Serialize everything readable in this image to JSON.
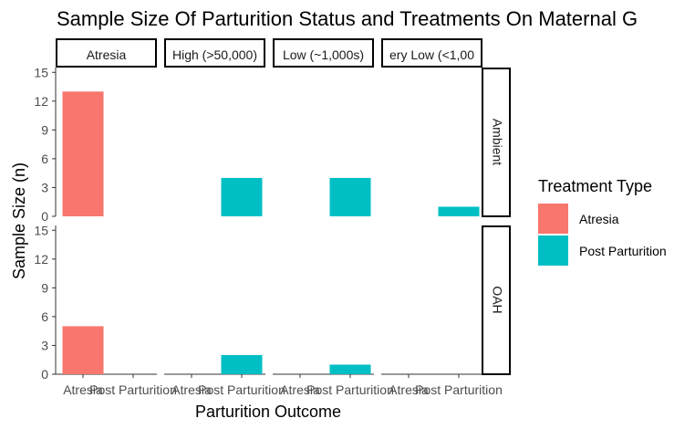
{
  "chart_data": {
    "type": "bar",
    "title": "Sample Size Of Parturition Status and Treatments On Maternal G",
    "xlabel": "Parturition Outcome",
    "ylabel": "Sample Size (n)",
    "ylim": [
      0,
      15.5
    ],
    "yticks": [
      0,
      3,
      6,
      9,
      12,
      15
    ],
    "categories": [
      "Atresia",
      "Post Parturition"
    ],
    "facet_columns": [
      "Atresia",
      "High (>50,000)",
      "Low (~1,000s)",
      "ery Low (<1,00"
    ],
    "facet_rows": [
      "Ambient",
      "OAH"
    ],
    "legend": {
      "title": "Treatment Type",
      "position": "right",
      "entries": [
        {
          "name": "Atresia",
          "color": "#F8766D"
        },
        {
          "name": "Post Parturition",
          "color": "#00BFC4"
        }
      ]
    },
    "grid": false,
    "panels": [
      {
        "row": "Ambient",
        "column": "Atresia",
        "values": [
          13,
          0
        ]
      },
      {
        "row": "Ambient",
        "column": "High (>50,000)",
        "values": [
          0,
          4
        ]
      },
      {
        "row": "Ambient",
        "column": "Low (~1,000s)",
        "values": [
          0,
          4
        ]
      },
      {
        "row": "Ambient",
        "column": "ery Low (<1,00",
        "values": [
          0,
          1
        ]
      },
      {
        "row": "OAH",
        "column": "Atresia",
        "values": [
          5,
          0
        ]
      },
      {
        "row": "OAH",
        "column": "High (>50,000)",
        "values": [
          0,
          2
        ]
      },
      {
        "row": "OAH",
        "column": "Low (~1,000s)",
        "values": [
          0,
          1
        ]
      },
      {
        "row": "OAH",
        "column": "ery Low (<1,00",
        "values": [
          0,
          0
        ]
      }
    ]
  }
}
